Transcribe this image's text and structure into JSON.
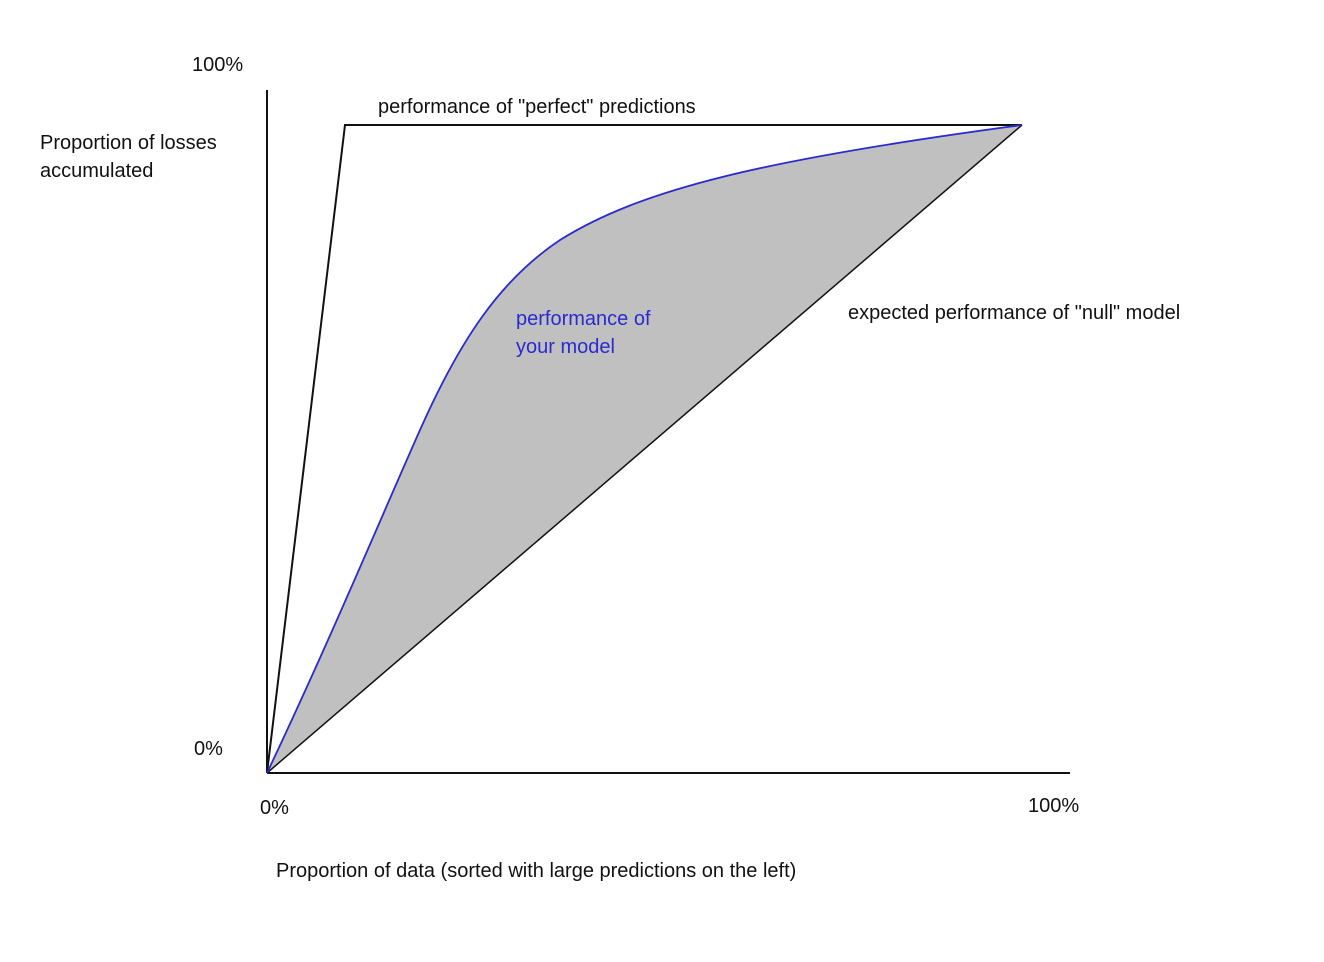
{
  "diagram": {
    "y_axis": {
      "top_tick": "100%",
      "bottom_tick": "0%",
      "label_line1": "Proportion of losses",
      "label_line2": "accumulated"
    },
    "x_axis": {
      "left_tick": "0%",
      "right_tick": "100%",
      "label": "Proportion of data (sorted with large predictions on the left)"
    },
    "curves": {
      "perfect": {
        "label": "performance of \"perfect\" predictions",
        "color": "#111111"
      },
      "model": {
        "label_line1": "performance of",
        "label_line2": "your model",
        "color": "#2a2ad0"
      },
      "null": {
        "label": "expected performance of \"null\" model",
        "color": "#111111"
      }
    },
    "shading_color": "#c0c0c0"
  }
}
